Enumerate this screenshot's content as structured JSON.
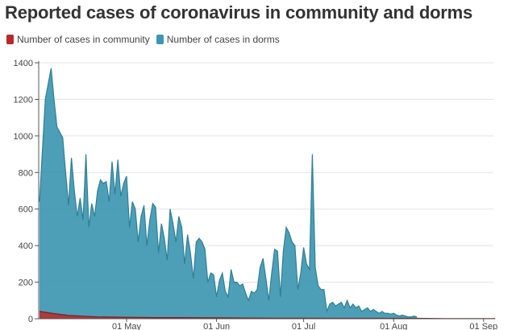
{
  "chart_data": {
    "type": "area",
    "title": "Reported cases of coronavirus in community and dorms",
    "xlabel": "",
    "ylabel": "",
    "ylim": [
      0,
      1400
    ],
    "yticks": [
      0,
      200,
      400,
      600,
      800,
      1000,
      1200,
      1400
    ],
    "xticks": [
      {
        "label": "01 May",
        "day": 30
      },
      {
        "label": "01 Jun",
        "day": 61
      },
      {
        "label": "01 Jul",
        "day": 91
      },
      {
        "label": "01 Aug",
        "day": 122
      },
      {
        "label": "01 Sep",
        "day": 153
      }
    ],
    "x_start": "01 Apr",
    "grid": true,
    "legend_position": "top-left",
    "series": [
      {
        "name": "Number of cases in community",
        "color": "#b82a2a",
        "points": [
          [
            0,
            40
          ],
          [
            5,
            28
          ],
          [
            10,
            18
          ],
          [
            15,
            14
          ],
          [
            20,
            10
          ],
          [
            30,
            8
          ],
          [
            40,
            6
          ],
          [
            50,
            6
          ],
          [
            60,
            5
          ],
          [
            70,
            4
          ],
          [
            80,
            3
          ],
          [
            90,
            3
          ],
          [
            100,
            2
          ],
          [
            110,
            2
          ],
          [
            120,
            2
          ],
          [
            130,
            2
          ],
          [
            140,
            1
          ],
          [
            150,
            1
          ],
          [
            157,
            1
          ]
        ]
      },
      {
        "name": "Number of cases in dorms",
        "color": "#3d97b0",
        "points": [
          [
            0,
            640
          ],
          [
            2,
            1200
          ],
          [
            4,
            1370
          ],
          [
            5,
            1200
          ],
          [
            6,
            1050
          ],
          [
            8,
            990
          ],
          [
            9,
            800
          ],
          [
            10,
            620
          ],
          [
            11,
            880
          ],
          [
            12,
            700
          ],
          [
            13,
            560
          ],
          [
            14,
            660
          ],
          [
            15,
            540
          ],
          [
            16,
            900
          ],
          [
            17,
            500
          ],
          [
            18,
            630
          ],
          [
            19,
            560
          ],
          [
            20,
            700
          ],
          [
            21,
            760
          ],
          [
            22,
            740
          ],
          [
            23,
            750
          ],
          [
            24,
            640
          ],
          [
            25,
            860
          ],
          [
            26,
            680
          ],
          [
            27,
            870
          ],
          [
            28,
            670
          ],
          [
            29,
            740
          ],
          [
            30,
            780
          ],
          [
            31,
            500
          ],
          [
            32,
            640
          ],
          [
            33,
            600
          ],
          [
            34,
            420
          ],
          [
            35,
            560
          ],
          [
            36,
            620
          ],
          [
            37,
            400
          ],
          [
            38,
            540
          ],
          [
            39,
            630
          ],
          [
            40,
            610
          ],
          [
            41,
            360
          ],
          [
            42,
            520
          ],
          [
            43,
            440
          ],
          [
            44,
            320
          ],
          [
            45,
            600
          ],
          [
            46,
            520
          ],
          [
            47,
            420
          ],
          [
            48,
            560
          ],
          [
            49,
            500
          ],
          [
            50,
            300
          ],
          [
            51,
            460
          ],
          [
            52,
            360
          ],
          [
            53,
            220
          ],
          [
            54,
            420
          ],
          [
            55,
            440
          ],
          [
            56,
            420
          ],
          [
            57,
            380
          ],
          [
            58,
            200
          ],
          [
            59,
            250
          ],
          [
            60,
            240
          ],
          [
            61,
            120
          ],
          [
            62,
            210
          ],
          [
            63,
            250
          ],
          [
            64,
            150
          ],
          [
            65,
            120
          ],
          [
            66,
            270
          ],
          [
            67,
            200
          ],
          [
            68,
            200
          ],
          [
            69,
            180
          ],
          [
            70,
            190
          ],
          [
            71,
            140
          ],
          [
            72,
            100
          ],
          [
            73,
            150
          ],
          [
            74,
            140
          ],
          [
            75,
            160
          ],
          [
            76,
            280
          ],
          [
            77,
            330
          ],
          [
            78,
            220
          ],
          [
            79,
            100
          ],
          [
            80,
            250
          ],
          [
            81,
            380
          ],
          [
            82,
            370
          ],
          [
            83,
            120
          ],
          [
            84,
            370
          ],
          [
            85,
            500
          ],
          [
            86,
            470
          ],
          [
            87,
            420
          ],
          [
            88,
            400
          ],
          [
            89,
            160
          ],
          [
            90,
            250
          ],
          [
            91,
            390
          ],
          [
            92,
            300
          ],
          [
            93,
            270
          ],
          [
            94,
            900
          ],
          [
            95,
            280
          ],
          [
            96,
            180
          ],
          [
            97,
            160
          ],
          [
            98,
            160
          ],
          [
            99,
            40
          ],
          [
            100,
            80
          ],
          [
            101,
            90
          ],
          [
            102,
            70
          ],
          [
            103,
            80
          ],
          [
            104,
            90
          ],
          [
            105,
            60
          ],
          [
            106,
            100
          ],
          [
            107,
            60
          ],
          [
            108,
            80
          ],
          [
            109,
            60
          ],
          [
            110,
            70
          ],
          [
            111,
            40
          ],
          [
            112,
            50
          ],
          [
            113,
            60
          ],
          [
            114,
            40
          ],
          [
            115,
            50
          ],
          [
            116,
            40
          ],
          [
            117,
            30
          ],
          [
            118,
            40
          ],
          [
            119,
            30
          ],
          [
            120,
            30
          ],
          [
            121,
            25
          ],
          [
            122,
            30
          ],
          [
            123,
            20
          ],
          [
            124,
            15
          ],
          [
            125,
            20
          ],
          [
            126,
            15
          ],
          [
            127,
            10
          ],
          [
            128,
            10
          ],
          [
            129,
            15
          ],
          [
            130,
            10
          ]
        ]
      }
    ]
  }
}
